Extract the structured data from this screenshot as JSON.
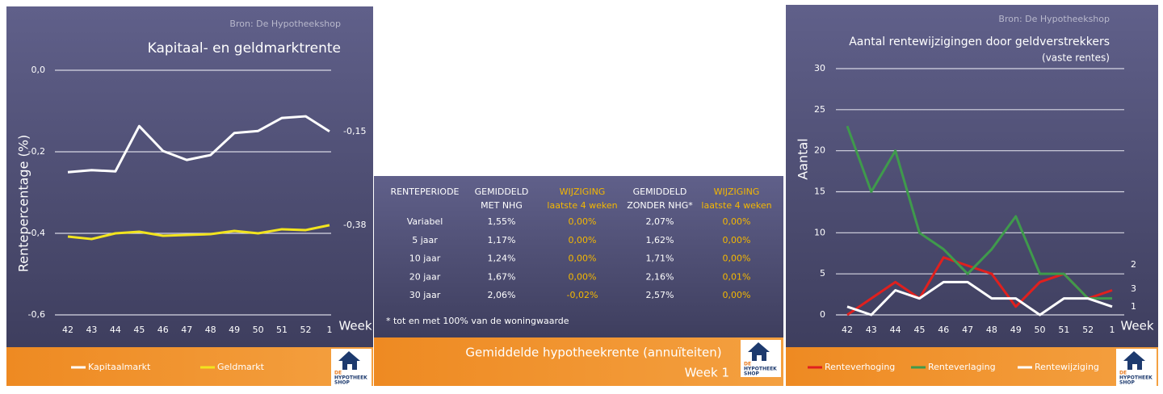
{
  "chart_data": [
    {
      "type": "line",
      "title": "Kapitaal- en geldmarktrente",
      "source": "Bron: De Hypotheekshop",
      "y_label": "Rentepercentage (%)",
      "x_label": "Week",
      "categories": [
        "42",
        "43",
        "44",
        "45",
        "46",
        "47",
        "48",
        "49",
        "50",
        "51",
        "52",
        "1"
      ],
      "series": [
        {
          "name": "Kapitaalmarkt",
          "color": "#ffffff",
          "values": [
            -0.25,
            -0.245,
            -0.248,
            -0.137,
            -0.198,
            -0.22,
            -0.208,
            -0.154,
            -0.149,
            -0.117,
            -0.113,
            -0.15
          ],
          "value_labels": [
            null,
            null,
            null,
            null,
            null,
            null,
            null,
            null,
            null,
            null,
            null,
            "-0,15"
          ]
        },
        {
          "name": "Geldmarkt",
          "color": "#f2e41e",
          "values": [
            -0.408,
            -0.414,
            -0.4,
            -0.396,
            -0.406,
            -0.404,
            -0.402,
            -0.394,
            -0.4,
            -0.39,
            -0.392,
            -0.38
          ],
          "value_labels": [
            null,
            null,
            null,
            null,
            null,
            null,
            null,
            null,
            null,
            null,
            null,
            "-0,38"
          ]
        }
      ],
      "ylim": [
        -0.6,
        0
      ],
      "yticks": [
        {
          "value": 0,
          "label": "0,0"
        },
        {
          "value": -0.2,
          "label": "-0,2"
        },
        {
          "value": -0.4,
          "label": "-0,4"
        },
        {
          "value": -0.6,
          "label": "-0,6"
        }
      ],
      "grid": true,
      "legend": "bottom"
    },
    {
      "type": "line",
      "title": "Aantal rentewijzigingen door geldverstrekkers",
      "subtitle": "(vaste rentes)",
      "source": "Bron: De Hypotheekshop",
      "y_label": "Aantal",
      "x_label": "Week",
      "categories": [
        "42",
        "43",
        "44",
        "45",
        "46",
        "47",
        "48",
        "49",
        "50",
        "51",
        "52",
        "1"
      ],
      "series": [
        {
          "name": "Renteverhoging",
          "color": "#e0201e",
          "values": [
            0,
            2,
            4,
            2,
            7,
            6,
            5,
            1,
            4,
            5,
            2,
            3
          ]
        },
        {
          "name": "Renteverlaging",
          "color": "#3f9a4c",
          "values": [
            23,
            15,
            20,
            10,
            8,
            5,
            8,
            12,
            5,
            5,
            2,
            2
          ]
        },
        {
          "name": "Rentewijziging",
          "color": "#ffffff",
          "values": [
            1,
            0,
            3,
            2,
            4,
            4,
            2,
            2,
            0,
            2,
            2,
            1
          ]
        }
      ],
      "ylim": [
        0,
        30
      ],
      "yticks": [
        0,
        5,
        10,
        15,
        20,
        25,
        30
      ],
      "grid": true,
      "legend": "bottom"
    }
  ],
  "table": {
    "title": "Gemiddelde hypotheekrente (annuïteiten)",
    "subtitle": "Week 1",
    "header": [
      [
        "RENTEPERIODE"
      ],
      [
        "GEMIDDELD",
        "MET NHG"
      ],
      [
        "WIJZIGING",
        "laatste 4 weken"
      ],
      [
        "GEMIDDELD",
        "ZONDER NHG*"
      ],
      [
        "WIJZIGING",
        "laatste 4 weken"
      ]
    ],
    "rows": [
      [
        "Variabel",
        "1,55%",
        "0,00%",
        "2,07%",
        "0,00%"
      ],
      [
        "5 jaar",
        "1,17%",
        "0,00%",
        "1,62%",
        "0,00%"
      ],
      [
        "10 jaar",
        "1,24%",
        "0,00%",
        "1,71%",
        "0,00%"
      ],
      [
        "20 jaar",
        "1,67%",
        "0,00%",
        "2,16%",
        "0,01%"
      ],
      [
        "30 jaar",
        "2,06%",
        "-0,02%",
        "2,57%",
        "0,00%"
      ]
    ],
    "footnote": "* tot en met 100% van de woningwaarde"
  },
  "logo": [
    "DE",
    "HYPOTHEEK",
    "SHOP"
  ]
}
